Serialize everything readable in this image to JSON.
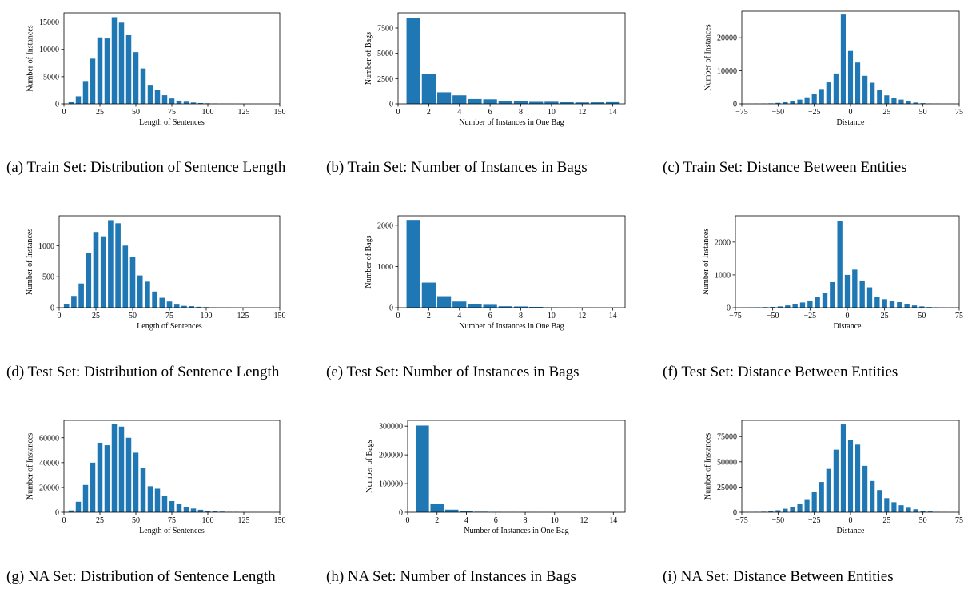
{
  "colors": {
    "bar": "#1f77b4",
    "axis": "#000000",
    "background": "#ffffff"
  },
  "chart_data": [
    {
      "id": "a",
      "type": "bar",
      "xlabel": "Length of Sentences",
      "ylabel": "Number of Instances",
      "xlim": [
        0,
        150
      ],
      "ylim": [
        0,
        16700
      ],
      "xticks": [
        0,
        25,
        50,
        75,
        100,
        125,
        150
      ],
      "yticks": [
        0,
        5000,
        10000,
        15000
      ],
      "bar_width": 3.6,
      "x": [
        5,
        10,
        15,
        20,
        25,
        30,
        35,
        40,
        45,
        50,
        55,
        60,
        65,
        70,
        75,
        80,
        85,
        90,
        95,
        100,
        105,
        110,
        115,
        120,
        125,
        130,
        135,
        140
      ],
      "values": [
        300,
        1400,
        4200,
        8300,
        12200,
        12000,
        15900,
        14900,
        12600,
        9500,
        6500,
        3500,
        2600,
        1600,
        1000,
        600,
        400,
        250,
        150,
        100,
        60,
        40,
        25,
        15,
        10,
        5,
        3,
        2
      ],
      "caption": "(a) Train Set: Distribution of Sentence Length"
    },
    {
      "id": "b",
      "type": "bar",
      "xlabel": "Number of Instances in One Bag",
      "ylabel": "Number of Bags",
      "xlim": [
        0,
        14.8
      ],
      "ylim": [
        0,
        9000
      ],
      "xticks": [
        0,
        2,
        4,
        6,
        8,
        10,
        12,
        14
      ],
      "yticks": [
        0,
        2500,
        5000,
        7500
      ],
      "bar_width": 0.9,
      "x": [
        1,
        2,
        3,
        4,
        5,
        6,
        7,
        8,
        9,
        10,
        11,
        12,
        13,
        14
      ],
      "values": [
        8500,
        2950,
        1150,
        850,
        480,
        450,
        250,
        280,
        200,
        210,
        160,
        140,
        150,
        170
      ],
      "caption": "(b) Train Set: Number of Instances in Bags"
    },
    {
      "id": "c",
      "type": "bar",
      "xlabel": "Distance",
      "ylabel": "Number of Instances",
      "xlim": [
        -75,
        75
      ],
      "ylim": [
        0,
        28000
      ],
      "xticks": [
        -75,
        -50,
        -25,
        0,
        25,
        50,
        75
      ],
      "yticks": [
        0,
        10000,
        20000
      ],
      "bar_width": 3.4,
      "x": [
        -70,
        -65,
        -60,
        -55,
        -50,
        -45,
        -40,
        -35,
        -30,
        -25,
        -20,
        -15,
        -10,
        -5,
        0,
        5,
        10,
        15,
        20,
        25,
        30,
        35,
        40,
        45,
        50,
        55,
        60,
        65,
        70
      ],
      "values": [
        40,
        60,
        100,
        150,
        300,
        500,
        800,
        1300,
        2000,
        3000,
        4500,
        6500,
        9200,
        27000,
        16000,
        12500,
        8500,
        6400,
        4100,
        2600,
        1800,
        1300,
        800,
        400,
        200,
        100,
        60,
        30,
        15
      ],
      "caption": "(c) Train Set: Distance Between Entities"
    },
    {
      "id": "d",
      "type": "bar",
      "xlabel": "Length of Sentences",
      "ylabel": "Number of Instances",
      "xlim": [
        0,
        150
      ],
      "ylim": [
        0,
        1480
      ],
      "xticks": [
        0,
        25,
        50,
        75,
        100,
        125,
        150
      ],
      "yticks": [
        0,
        500,
        1000
      ],
      "bar_width": 3.6,
      "x": [
        5,
        10,
        15,
        20,
        25,
        30,
        35,
        40,
        45,
        50,
        55,
        60,
        65,
        70,
        75,
        80,
        85,
        90,
        95,
        100,
        105,
        110,
        115,
        120,
        125,
        130,
        135,
        140
      ],
      "values": [
        60,
        190,
        390,
        880,
        1220,
        1150,
        1410,
        1360,
        1000,
        820,
        520,
        420,
        260,
        160,
        100,
        50,
        30,
        25,
        15,
        10,
        5,
        3,
        2,
        1,
        1,
        0,
        0,
        0
      ],
      "caption": "(d) Test Set: Distribution of Sentence Length"
    },
    {
      "id": "e",
      "type": "bar",
      "xlabel": "Number of Instances in One Bag",
      "ylabel": "Number of Bags",
      "xlim": [
        0,
        14.8
      ],
      "ylim": [
        0,
        2230
      ],
      "xticks": [
        0,
        2,
        4,
        6,
        8,
        10,
        12,
        14
      ],
      "yticks": [
        0,
        1000,
        2000
      ],
      "bar_width": 0.9,
      "x": [
        1,
        2,
        3,
        4,
        5,
        6,
        7,
        8,
        9,
        10,
        11,
        12,
        13,
        14
      ],
      "values": [
        2130,
        610,
        280,
        150,
        90,
        70,
        35,
        30,
        20,
        10,
        5,
        3,
        2,
        1
      ],
      "caption": "(e) Test Set: Number of Instances in Bags"
    },
    {
      "id": "f",
      "type": "bar",
      "xlabel": "Distance",
      "ylabel": "Number of Instances",
      "xlim": [
        -75,
        75
      ],
      "ylim": [
        0,
        2800
      ],
      "xticks": [
        -75,
        -50,
        -25,
        0,
        25,
        50,
        75
      ],
      "yticks": [
        0,
        1000,
        2000
      ],
      "bar_width": 3.4,
      "x": [
        -70,
        -65,
        -60,
        -55,
        -50,
        -45,
        -40,
        -35,
        -30,
        -25,
        -20,
        -15,
        -10,
        -5,
        0,
        5,
        10,
        15,
        20,
        25,
        30,
        35,
        40,
        45,
        50,
        55,
        60,
        65,
        70
      ],
      "values": [
        5,
        8,
        12,
        18,
        25,
        40,
        70,
        100,
        160,
        220,
        330,
        460,
        780,
        2640,
        1000,
        1160,
        830,
        620,
        330,
        260,
        200,
        170,
        120,
        70,
        40,
        20,
        10,
        5,
        3
      ],
      "caption": "(f) Test Set: Distance Between Entities"
    },
    {
      "id": "g",
      "type": "bar",
      "xlabel": "Length of Sentences",
      "ylabel": "Number of Instances",
      "xlim": [
        0,
        150
      ],
      "ylim": [
        0,
        74000
      ],
      "xticks": [
        0,
        25,
        50,
        75,
        100,
        125,
        150
      ],
      "yticks": [
        0,
        20000,
        40000,
        60000
      ],
      "bar_width": 3.6,
      "x": [
        5,
        10,
        15,
        20,
        25,
        30,
        35,
        40,
        45,
        50,
        55,
        60,
        65,
        70,
        75,
        80,
        85,
        90,
        95,
        100,
        105,
        110,
        115,
        120,
        125,
        130,
        135,
        140
      ],
      "values": [
        1500,
        8500,
        22000,
        40000,
        56000,
        54000,
        71000,
        69000,
        60000,
        48000,
        36000,
        21000,
        19000,
        13000,
        9000,
        6500,
        4500,
        3000,
        2000,
        1300,
        800,
        500,
        300,
        200,
        100,
        60,
        30,
        20
      ],
      "caption": "(g) NA Set: Distribution of Sentence Length"
    },
    {
      "id": "h",
      "type": "bar",
      "xlabel": "Number of Instances in One Bag",
      "ylabel": "Number of Bags",
      "xlim": [
        0,
        14.8
      ],
      "ylim": [
        0,
        320000
      ],
      "xticks": [
        0,
        2,
        4,
        6,
        8,
        10,
        12,
        14
      ],
      "yticks": [
        0,
        100000,
        200000,
        300000
      ],
      "bar_width": 0.9,
      "x": [
        1,
        2,
        3,
        4,
        5,
        6,
        7,
        8,
        9,
        10,
        11,
        12,
        13,
        14
      ],
      "values": [
        302000,
        28000,
        9000,
        4000,
        1800,
        1000,
        600,
        400,
        300,
        200,
        150,
        100,
        80,
        60
      ],
      "caption": "(h) NA Set: Number of Instances in Bags"
    },
    {
      "id": "i",
      "type": "bar",
      "xlabel": "Distance",
      "ylabel": "Number of Instances",
      "xlim": [
        -75,
        75
      ],
      "ylim": [
        0,
        91000
      ],
      "xticks": [
        -75,
        -50,
        -25,
        0,
        25,
        50,
        75
      ],
      "yticks": [
        0,
        25000,
        50000,
        75000
      ],
      "bar_width": 3.4,
      "x": [
        -70,
        -65,
        -60,
        -55,
        -50,
        -45,
        -40,
        -35,
        -30,
        -25,
        -20,
        -15,
        -10,
        -5,
        0,
        5,
        10,
        15,
        20,
        25,
        30,
        35,
        40,
        45,
        50,
        55,
        60,
        65,
        70
      ],
      "values": [
        100,
        200,
        500,
        1000,
        2000,
        3500,
        5500,
        8000,
        13000,
        20000,
        30000,
        43000,
        62000,
        87000,
        72000,
        67000,
        46000,
        31000,
        22000,
        14000,
        10000,
        7000,
        4500,
        3000,
        1500,
        700,
        300,
        150,
        80
      ],
      "caption": "(i) NA Set: Distance Between Entities"
    }
  ]
}
